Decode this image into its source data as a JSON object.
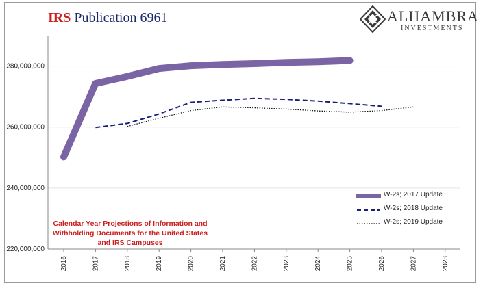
{
  "header": {
    "title_prefix": "IRS",
    "title_rest": "Publication 6961",
    "logo_name": "ALHAMBRA",
    "logo_sub": "INVESTMENTS"
  },
  "annotation": "Calendar Year Projections of Information and Withholding Documents for the United States and IRS Campuses",
  "chart_data": {
    "type": "line",
    "title": "IRS Publication 6961",
    "categories": [
      "2016",
      "2017",
      "2018",
      "2019",
      "2020",
      "2021",
      "2022",
      "2023",
      "2024",
      "2025",
      "2026",
      "2027",
      "2028"
    ],
    "ylim": [
      220000000,
      290000000
    ],
    "yticks": [
      220000000,
      240000000,
      260000000,
      280000000
    ],
    "ytick_labels": [
      "220,000,000",
      "240,000,000",
      "260,000,000",
      "280,000,000"
    ],
    "grid": true,
    "legend_position": "bottom-right",
    "series": [
      {
        "name": "W-2s; 2017 Update",
        "color": "#7b64a3",
        "style": "solid-thick",
        "values": [
          250200000,
          274300000,
          276600000,
          279200000,
          280100000,
          280500000,
          280800000,
          281200000,
          281400000,
          281800000,
          null,
          null,
          null
        ]
      },
      {
        "name": "W-2s; 2018 Update",
        "color": "#1a1f7a",
        "style": "dashed",
        "values": [
          null,
          259900000,
          261200000,
          264300000,
          268100000,
          268800000,
          269400000,
          269100000,
          268500000,
          267700000,
          266800000,
          null,
          null
        ]
      },
      {
        "name": "W-2s; 2019 Update",
        "color": "#111111",
        "style": "dotted",
        "values": [
          null,
          null,
          260200000,
          262900000,
          265400000,
          266600000,
          266300000,
          265900000,
          265300000,
          264900000,
          265400000,
          266600000,
          null
        ]
      }
    ]
  }
}
